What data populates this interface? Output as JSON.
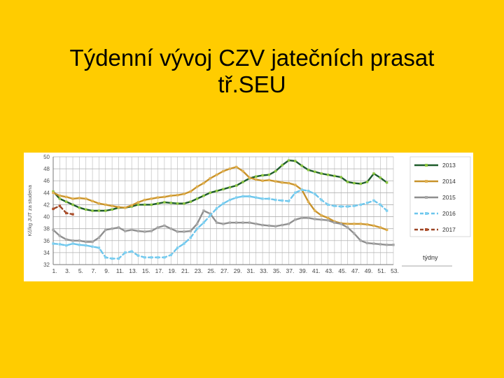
{
  "slide": {
    "title_line1": "Týdenní vývoj CZV jatečních prasat",
    "title_line2": "tř.SEU"
  },
  "chart_data": {
    "type": "line",
    "ylabel": "Kč/kg JUT za studena",
    "xlabel": "týdny",
    "ylim": [
      32,
      50
    ],
    "yticks": [
      32,
      34,
      36,
      38,
      40,
      42,
      44,
      46,
      48,
      50
    ],
    "xlim": [
      1,
      53
    ],
    "xtick_labels": [
      "1.",
      "3.",
      "5.",
      "7.",
      "9.",
      "11.",
      "13.",
      "15.",
      "17.",
      "19.",
      "21.",
      "23.",
      "25.",
      "27.",
      "29.",
      "31.",
      "33.",
      "35.",
      "37.",
      "39.",
      "41.",
      "43.",
      "45.",
      "47.",
      "49.",
      "51.",
      "53."
    ],
    "grid": true,
    "legend_position": "right",
    "series": [
      {
        "name": "2013",
        "color": "#1e5c2a",
        "marker_color": "#8cc63f",
        "dash": "solid",
        "x": [
          1,
          2,
          3,
          4,
          5,
          6,
          7,
          8,
          9,
          10,
          11,
          12,
          13,
          14,
          15,
          16,
          17,
          18,
          19,
          20,
          21,
          22,
          23,
          24,
          25,
          26,
          27,
          28,
          29,
          30,
          31,
          32,
          33,
          34,
          35,
          36,
          37,
          38,
          39,
          40,
          41,
          42,
          43,
          44,
          45,
          46,
          47,
          48,
          49,
          50,
          51,
          52
        ],
        "y": [
          44.2,
          43.0,
          42.5,
          42.0,
          41.5,
          41.2,
          41.0,
          41.0,
          41.0,
          41.2,
          41.5,
          41.5,
          41.7,
          42.0,
          42.0,
          42.0,
          42.2,
          42.4,
          42.3,
          42.2,
          42.2,
          42.5,
          43.0,
          43.5,
          44.0,
          44.3,
          44.6,
          44.9,
          45.2,
          45.8,
          46.4,
          46.7,
          46.9,
          47.0,
          47.6,
          48.6,
          49.4,
          49.3,
          48.5,
          47.8,
          47.5,
          47.2,
          47.0,
          46.8,
          46.6,
          45.8,
          45.6,
          45.5,
          45.8,
          47.2,
          46.5,
          45.7
        ]
      },
      {
        "name": "2014",
        "color": "#c8922a",
        "marker_color": "#e0b050",
        "dash": "solid",
        "x": [
          1,
          2,
          3,
          4,
          5,
          6,
          7,
          8,
          9,
          10,
          11,
          12,
          13,
          14,
          15,
          16,
          17,
          18,
          19,
          20,
          21,
          22,
          23,
          24,
          25,
          26,
          27,
          28,
          29,
          30,
          31,
          32,
          33,
          34,
          35,
          36,
          37,
          38,
          39,
          40,
          41,
          42,
          43,
          44,
          45,
          46,
          47,
          48,
          49,
          50,
          51,
          52
        ],
        "y": [
          44.0,
          43.5,
          43.3,
          43.0,
          43.1,
          43.0,
          42.6,
          42.2,
          42.0,
          41.8,
          41.6,
          41.5,
          41.9,
          42.4,
          42.8,
          43.0,
          43.2,
          43.3,
          43.5,
          43.6,
          43.8,
          44.2,
          45.0,
          45.6,
          46.4,
          47.0,
          47.6,
          48.0,
          48.3,
          47.6,
          46.5,
          46.2,
          46.0,
          46.1,
          45.9,
          45.7,
          45.6,
          45.3,
          44.5,
          42.5,
          41.0,
          40.2,
          39.8,
          39.2,
          38.9,
          38.8,
          38.8,
          38.8,
          38.7,
          38.5,
          38.2,
          37.8
        ]
      },
      {
        "name": "2015",
        "color": "#8e8e8e",
        "marker_color": "#a8a8a8",
        "dash": "solid",
        "x": [
          1,
          2,
          3,
          4,
          5,
          6,
          7,
          8,
          9,
          10,
          11,
          12,
          13,
          14,
          15,
          16,
          17,
          18,
          19,
          20,
          21,
          22,
          23,
          24,
          25,
          26,
          27,
          28,
          29,
          30,
          31,
          32,
          33,
          34,
          35,
          36,
          37,
          38,
          39,
          40,
          41,
          42,
          43,
          44,
          45,
          46,
          47,
          48,
          49,
          50,
          51,
          52,
          53
        ],
        "y": [
          37.8,
          36.8,
          36.2,
          36.0,
          36.0,
          35.8,
          35.8,
          36.5,
          37.8,
          38.0,
          38.2,
          37.6,
          37.8,
          37.6,
          37.5,
          37.6,
          38.2,
          38.5,
          38.0,
          37.5,
          37.5,
          37.6,
          38.8,
          41.0,
          40.5,
          39.0,
          38.8,
          39.0,
          39.0,
          39.0,
          39.0,
          38.8,
          38.6,
          38.5,
          38.4,
          38.6,
          38.8,
          39.5,
          39.8,
          39.8,
          39.6,
          39.5,
          39.4,
          39.0,
          38.8,
          38.2,
          37.2,
          36.0,
          35.6,
          35.5,
          35.4,
          35.3,
          35.3
        ]
      },
      {
        "name": "2016",
        "color": "#6cc5ec",
        "marker_color": "#7fd0f0",
        "dash": "dashed",
        "x": [
          1,
          2,
          3,
          4,
          5,
          6,
          7,
          8,
          9,
          10,
          11,
          12,
          13,
          14,
          15,
          16,
          17,
          18,
          19,
          20,
          21,
          22,
          23,
          24,
          25,
          26,
          27,
          28,
          29,
          30,
          31,
          32,
          33,
          34,
          35,
          36,
          37,
          38,
          39,
          40,
          41,
          42,
          43,
          44,
          45,
          46,
          47,
          48,
          49,
          50,
          51,
          52
        ],
        "y": [
          35.5,
          35.4,
          35.2,
          35.5,
          35.3,
          35.2,
          35.0,
          34.8,
          33.2,
          33.0,
          33.0,
          34.0,
          34.2,
          33.5,
          33.2,
          33.2,
          33.2,
          33.2,
          33.6,
          34.8,
          35.5,
          36.5,
          38.0,
          39.0,
          40.2,
          41.4,
          42.2,
          42.8,
          43.2,
          43.4,
          43.4,
          43.2,
          43.0,
          43.0,
          42.8,
          42.7,
          42.6,
          44.0,
          44.5,
          44.3,
          43.8,
          42.8,
          42.0,
          41.8,
          41.7,
          41.7,
          41.8,
          42.0,
          42.3,
          42.7,
          42.0,
          41.0
        ]
      },
      {
        "name": "2017",
        "color": "#9a4525",
        "marker_color": "#b0502c",
        "dash": "dashed",
        "x": [
          1,
          2,
          3,
          4
        ],
        "y": [
          41.3,
          41.8,
          40.6,
          40.4
        ]
      }
    ]
  }
}
